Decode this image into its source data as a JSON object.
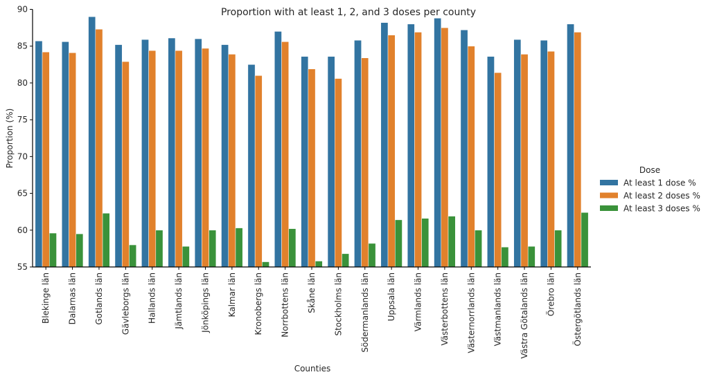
{
  "chart_data": {
    "type": "bar",
    "title": "Proportion with at least 1, 2, and 3 doses per county",
    "xlabel": "Counties",
    "ylabel": "Proportion (%)",
    "ylim": [
      55,
      90
    ],
    "yticks": [
      55,
      60,
      65,
      70,
      75,
      80,
      85,
      90
    ],
    "grid": false,
    "legend": {
      "title": "Dose",
      "placement": "right"
    },
    "categories": [
      "Blekinge län",
      "Dalarnas län",
      "Gotlands län",
      "Gävleborgs län",
      "Hallands län",
      "Jämtlands län",
      "Jönköpings län",
      "Kalmar län",
      "Kronobergs län",
      "Norrbottens län",
      "Skåne län",
      "Stockholms län",
      "Södermanlands län",
      "Uppsala län",
      "Värmlands län",
      "Västerbottens län",
      "Västernorrlands län",
      "Västmanlands län",
      "Västra Götalands län",
      "Örebro län",
      "Östergötlands län"
    ],
    "series": [
      {
        "name": "At least 1 dose %",
        "color": "#3274a1",
        "values": [
          85.7,
          85.6,
          89.0,
          85.2,
          85.9,
          86.1,
          86.0,
          85.2,
          82.5,
          87.0,
          83.6,
          83.6,
          85.8,
          88.2,
          88.0,
          88.8,
          87.2,
          83.6,
          85.9,
          85.8,
          88.0
        ]
      },
      {
        "name": "At least 2 doses %",
        "color": "#e1812c",
        "values": [
          84.2,
          84.1,
          87.3,
          82.9,
          84.4,
          84.4,
          84.7,
          83.9,
          81.0,
          85.6,
          81.9,
          80.6,
          83.4,
          86.5,
          86.9,
          87.5,
          85.0,
          81.4,
          83.9,
          84.3,
          86.9
        ]
      },
      {
        "name": "At least 3 doses %",
        "color": "#3a923a",
        "values": [
          59.6,
          59.5,
          62.3,
          58.0,
          60.0,
          57.8,
          60.0,
          60.3,
          55.7,
          60.2,
          55.8,
          56.8,
          58.2,
          61.4,
          61.6,
          61.9,
          60.0,
          57.7,
          57.8,
          60.0,
          62.4
        ]
      }
    ]
  }
}
